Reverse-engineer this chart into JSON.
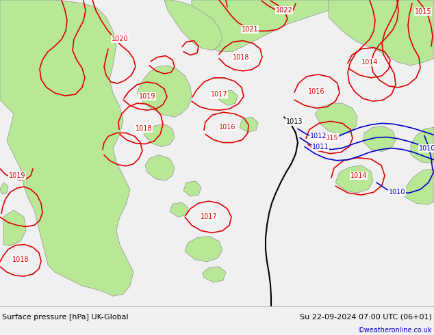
{
  "title_left": "Surface pressure [hPa] UK-Global",
  "title_right": "Su 22-09-2024 07:00 UTC (06+01)",
  "credit": "©weatheronline.co.uk",
  "bg_color": "#d3d3d3",
  "land_green": "#b8e896",
  "sea_gray": "#d3d3d3",
  "border_color": "#909090",
  "bottom_bar_color": "#f0f0f0",
  "red_contour_color": "#dd0000",
  "black_contour_color": "#000000",
  "blue_contour_color": "#0000cc",
  "font_size_bottom": 8,
  "font_size_label": 7
}
